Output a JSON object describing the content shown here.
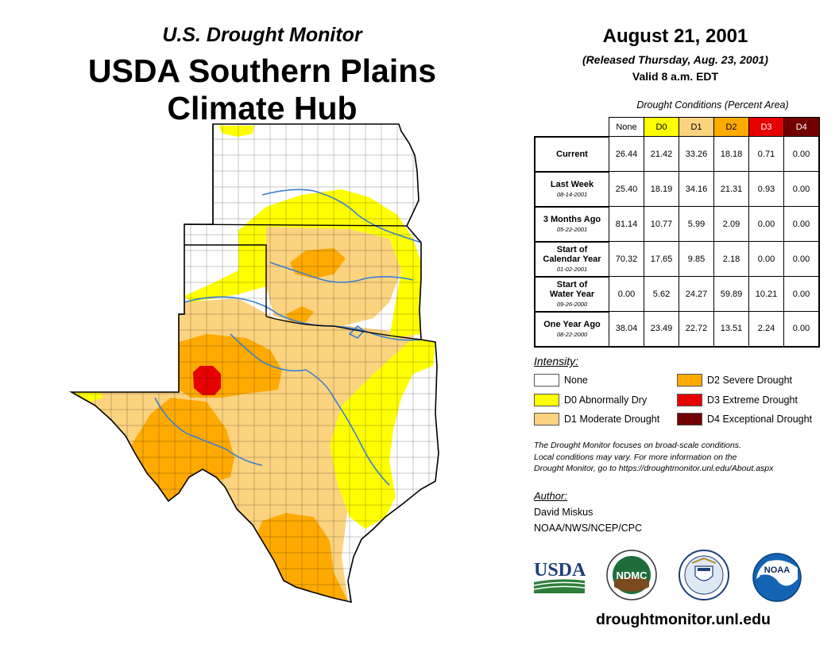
{
  "header": {
    "subtitle": "U.S. Drought Monitor",
    "title_line1": "USDA Southern Plains",
    "title_line2": "Climate Hub"
  },
  "info": {
    "date": "August 21, 2001",
    "released": "(Released Thursday, Aug. 23, 2001)",
    "valid": "Valid 8 a.m. EDT"
  },
  "conditions_table": {
    "caption": "Drought Conditions (Percent Area)",
    "columns": [
      {
        "label": "None",
        "color": "#ffffff",
        "text_color": "#000000"
      },
      {
        "label": "D0",
        "color": "#ffff00",
        "text_color": "#000000"
      },
      {
        "label": "D1",
        "color": "#fcd37f",
        "text_color": "#000000"
      },
      {
        "label": "D2",
        "color": "#ffaa00",
        "text_color": "#000000"
      },
      {
        "label": "D3",
        "color": "#e60000",
        "text_color": "#ffffff"
      },
      {
        "label": "D4",
        "color": "#730000",
        "text_color": "#ffffff"
      }
    ],
    "rows": [
      {
        "label_lines": [
          "Current"
        ],
        "date": "",
        "values": [
          "26.44",
          "21.42",
          "33.26",
          "18.18",
          "0.71",
          "0.00"
        ]
      },
      {
        "label_lines": [
          "Last Week"
        ],
        "date": "08-14-2001",
        "values": [
          "25.40",
          "18.19",
          "34.16",
          "21.31",
          "0.93",
          "0.00"
        ]
      },
      {
        "label_lines": [
          "3 Months Ago"
        ],
        "date": "05-22-2001",
        "values": [
          "81.14",
          "10.77",
          "5.99",
          "2.09",
          "0.00",
          "0.00"
        ]
      },
      {
        "label_lines": [
          "Start of",
          "Calendar Year"
        ],
        "date": "01-02-2001",
        "values": [
          "70.32",
          "17.65",
          "9.85",
          "2.18",
          "0.00",
          "0.00"
        ]
      },
      {
        "label_lines": [
          "Start of",
          "Water Year"
        ],
        "date": "09-26-2000",
        "values": [
          "0.00",
          "5.62",
          "24.27",
          "59.89",
          "10.21",
          "0.00"
        ]
      },
      {
        "label_lines": [
          "One Year Ago"
        ],
        "date": "08-22-2000",
        "values": [
          "38.04",
          "23.49",
          "22.72",
          "13.51",
          "2.24",
          "0.00"
        ]
      }
    ]
  },
  "legend": {
    "title": "Intensity:",
    "items": [
      {
        "label": "None",
        "color": "#ffffff"
      },
      {
        "label": "D0 Abnormally Dry",
        "color": "#ffff00"
      },
      {
        "label": "D1 Moderate Drought",
        "color": "#fcd37f"
      },
      {
        "label": "D2 Severe Drought",
        "color": "#ffaa00"
      },
      {
        "label": "D3 Extreme Drought",
        "color": "#e60000"
      },
      {
        "label": "D4 Exceptional Drought",
        "color": "#730000"
      }
    ]
  },
  "note": {
    "line1": "The Drought Monitor focuses on broad-scale conditions.",
    "line2": "Local conditions may vary. For more information on the",
    "line3": "Drought Monitor, go to https://droughtmonitor.unl.edu/About.aspx"
  },
  "author": {
    "title": "Author:",
    "name": "David Miskus",
    "org": "NOAA/NWS/NCEP/CPC"
  },
  "logos": {
    "usda": "USDA",
    "ndmc": "NDMC",
    "noaa": "NOAA"
  },
  "map": {
    "state_border_color": "#000000",
    "river_color": "#3a7fd5"
  },
  "website": "droughtmonitor.unl.edu"
}
